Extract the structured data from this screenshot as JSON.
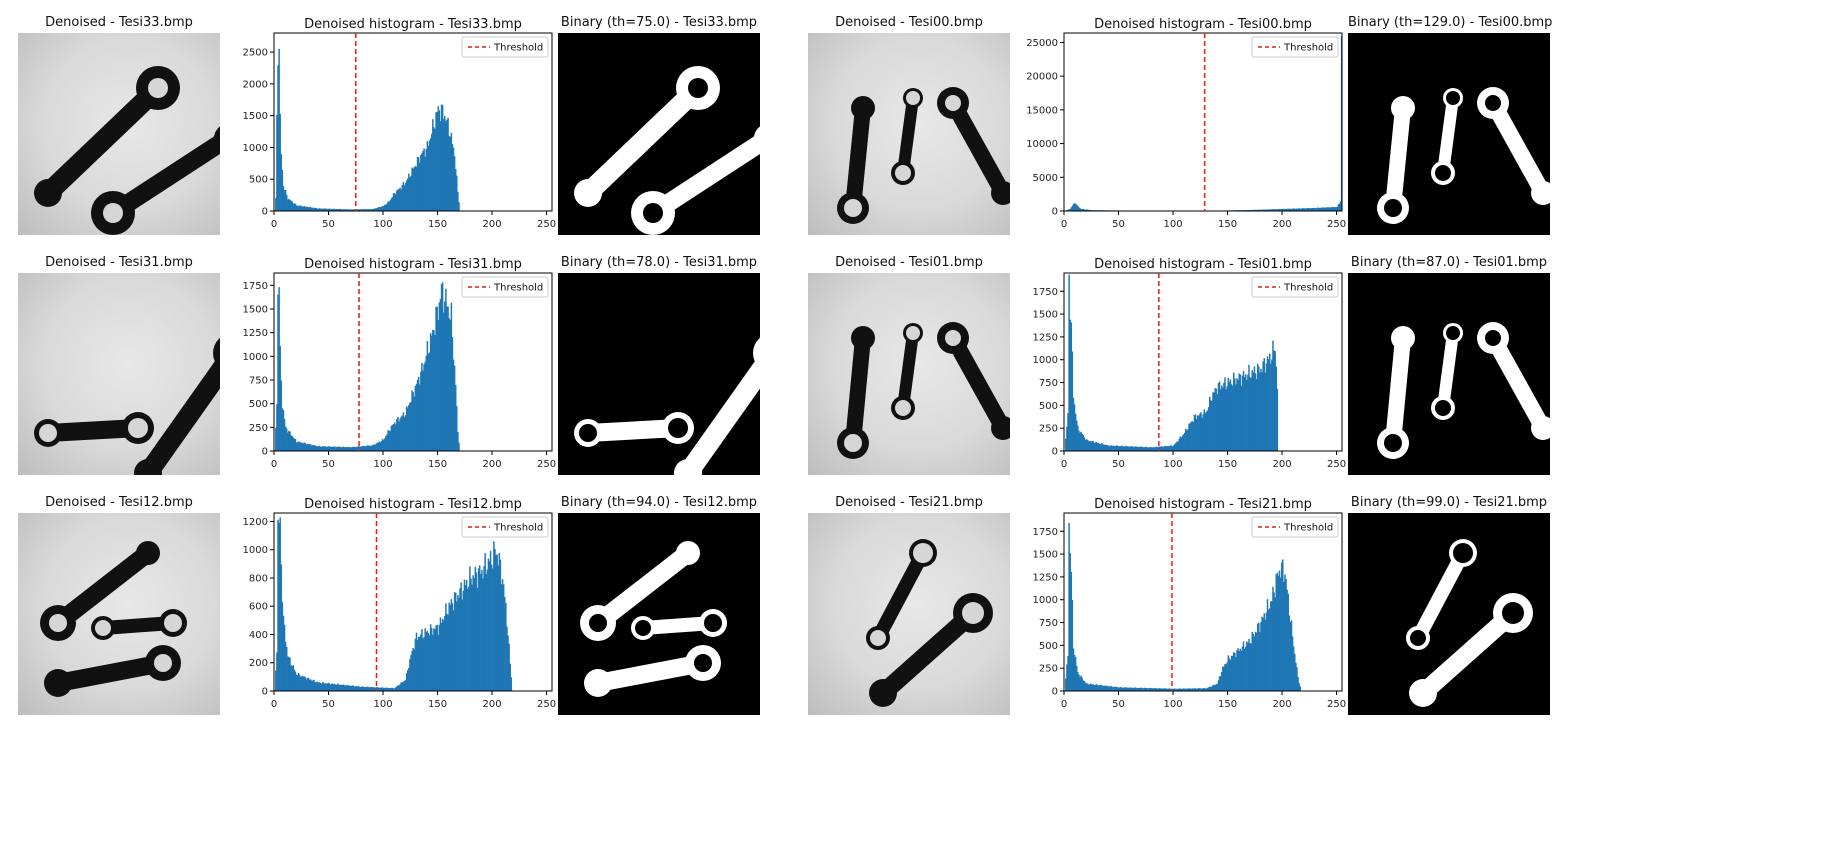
{
  "figure": {
    "groups": [
      {
        "rows": [
          {
            "denoised_title": "Denoised - Tesi33.bmp",
            "hist_title": "Denoised histogram - Tesi33.bmp",
            "binary_title": "Binary (th=75.0) - Tesi33.bmp",
            "rods": [
              {
                "x1": 30,
                "y1": 160,
                "x2": 140,
                "y2": 55,
                "r1": 14,
                "r2": 22,
                "w": 20,
                "hole2": 10
              },
              {
                "x1": 95,
                "y1": 180,
                "x2": 210,
                "y2": 105,
                "r1": 22,
                "r2": 14,
                "w": 18,
                "hole1": 10
              }
            ]
          },
          {
            "denoised_title": "Denoised - Tesi31.bmp",
            "hist_title": "Denoised histogram - Tesi31.bmp",
            "binary_title": "Binary (th=78.0) - Tesi31.bmp",
            "rods": [
              {
                "x1": 30,
                "y1": 160,
                "x2": 120,
                "y2": 155,
                "r1": 14,
                "r2": 16,
                "w": 18,
                "hole1": 9,
                "hole2": 10
              },
              {
                "x1": 130,
                "y1": 200,
                "x2": 215,
                "y2": 80,
                "r1": 14,
                "r2": 20,
                "w": 20,
                "hole2": 11
              }
            ]
          },
          {
            "denoised_title": "Denoised - Tesi12.bmp",
            "hist_title": "Denoised histogram - Tesi12.bmp",
            "binary_title": "Binary (th=94.0) - Tesi12.bmp",
            "rods": [
              {
                "x1": 40,
                "y1": 110,
                "x2": 130,
                "y2": 40,
                "r1": 18,
                "r2": 12,
                "w": 18,
                "hole1": 9
              },
              {
                "x1": 85,
                "y1": 115,
                "x2": 155,
                "y2": 110,
                "r1": 12,
                "r2": 14,
                "w": 14,
                "hole1": 8,
                "hole2": 9
              },
              {
                "x1": 40,
                "y1": 170,
                "x2": 145,
                "y2": 150,
                "r1": 14,
                "r2": 18,
                "w": 18,
                "hole2": 9
              }
            ]
          }
        ]
      },
      {
        "rows": [
          {
            "denoised_title": "Denoised - Tesi00.bmp",
            "hist_title": "Denoised histogram - Tesi00.bmp",
            "binary_title": "Binary (th=129.0) - Tesi00.bmp",
            "rods": [
              {
                "x1": 45,
                "y1": 175,
                "x2": 55,
                "y2": 75,
                "r1": 16,
                "r2": 12,
                "w": 16,
                "hole1": 9
              },
              {
                "x1": 95,
                "y1": 140,
                "x2": 105,
                "y2": 65,
                "r1": 12,
                "r2": 10,
                "w": 12,
                "hole1": 8,
                "hole2": 7
              },
              {
                "x1": 145,
                "y1": 70,
                "x2": 195,
                "y2": 160,
                "r1": 16,
                "r2": 12,
                "w": 16,
                "hole1": 8
              }
            ]
          },
          {
            "denoised_title": "Denoised - Tesi01.bmp",
            "hist_title": "Denoised histogram - Tesi01.bmp",
            "binary_title": "Binary (th=87.0) - Tesi01.bmp",
            "rods": [
              {
                "x1": 45,
                "y1": 170,
                "x2": 55,
                "y2": 65,
                "r1": 16,
                "r2": 12,
                "w": 16,
                "hole1": 9
              },
              {
                "x1": 95,
                "y1": 135,
                "x2": 105,
                "y2": 60,
                "r1": 12,
                "r2": 10,
                "w": 12,
                "hole1": 8,
                "hole2": 7
              },
              {
                "x1": 145,
                "y1": 65,
                "x2": 195,
                "y2": 155,
                "r1": 16,
                "r2": 12,
                "w": 16,
                "hole1": 8
              }
            ]
          },
          {
            "denoised_title": "Denoised - Tesi21.bmp",
            "hist_title": "Denoised histogram - Tesi21.bmp",
            "binary_title": "Binary (th=99.0) - Tesi21.bmp",
            "rods": [
              {
                "x1": 70,
                "y1": 125,
                "x2": 115,
                "y2": 40,
                "r1": 12,
                "r2": 14,
                "w": 14,
                "hole1": 8,
                "hole2": 10
              },
              {
                "x1": 75,
                "y1": 180,
                "x2": 165,
                "y2": 100,
                "r1": 14,
                "r2": 20,
                "w": 18,
                "hole2": 11
              }
            ]
          }
        ]
      }
    ]
  },
  "chart_data": [
    {
      "type": "bar",
      "title": "Denoised histogram - Tesi33.bmp",
      "legend": "Threshold",
      "legend_position": "top-right",
      "threshold": 75,
      "xlim": [
        0,
        255
      ],
      "ylim": [
        0,
        2800
      ],
      "xticks": [
        0,
        50,
        100,
        150,
        200,
        250
      ],
      "yticks": [
        0,
        500,
        1000,
        1500,
        2000,
        2500
      ],
      "profile": [
        [
          0,
          0
        ],
        [
          1,
          200
        ],
        [
          2,
          1400
        ],
        [
          3,
          2500
        ],
        [
          4,
          2700
        ],
        [
          5,
          1400
        ],
        [
          6,
          900
        ],
        [
          8,
          400
        ],
        [
          12,
          200
        ],
        [
          20,
          90
        ],
        [
          40,
          40
        ],
        [
          70,
          25
        ],
        [
          90,
          30
        ],
        [
          100,
          80
        ],
        [
          105,
          150
        ],
        [
          110,
          280
        ],
        [
          115,
          360
        ],
        [
          120,
          450
        ],
        [
          125,
          600
        ],
        [
          130,
          750
        ],
        [
          135,
          900
        ],
        [
          140,
          1000
        ],
        [
          145,
          1300
        ],
        [
          150,
          1600
        ],
        [
          155,
          1550
        ],
        [
          160,
          1300
        ],
        [
          165,
          900
        ],
        [
          168,
          300
        ],
        [
          170,
          0
        ],
        [
          255,
          0
        ]
      ]
    },
    {
      "type": "bar",
      "title": "Denoised histogram - Tesi31.bmp",
      "legend": "Threshold",
      "legend_position": "top-right",
      "threshold": 78,
      "xlim": [
        0,
        255
      ],
      "ylim": [
        0,
        1880
      ],
      "xticks": [
        0,
        50,
        100,
        150,
        200,
        250
      ],
      "yticks": [
        0,
        250,
        500,
        750,
        1000,
        1250,
        1500,
        1750
      ],
      "profile": [
        [
          0,
          0
        ],
        [
          2,
          500
        ],
        [
          3,
          1700
        ],
        [
          4,
          1800
        ],
        [
          5,
          1000
        ],
        [
          7,
          500
        ],
        [
          10,
          250
        ],
        [
          20,
          100
        ],
        [
          40,
          50
        ],
        [
          70,
          40
        ],
        [
          90,
          60
        ],
        [
          100,
          120
        ],
        [
          105,
          220
        ],
        [
          110,
          300
        ],
        [
          115,
          350
        ],
        [
          120,
          400
        ],
        [
          125,
          550
        ],
        [
          130,
          700
        ],
        [
          135,
          850
        ],
        [
          140,
          1050
        ],
        [
          145,
          1250
        ],
        [
          150,
          1500
        ],
        [
          153,
          1700
        ],
        [
          158,
          1550
        ],
        [
          162,
          1400
        ],
        [
          166,
          700
        ],
        [
          168,
          200
        ],
        [
          170,
          0
        ],
        [
          255,
          0
        ]
      ]
    },
    {
      "type": "bar",
      "title": "Denoised histogram - Tesi12.bmp",
      "legend": "Threshold",
      "legend_position": "top-right",
      "threshold": 94,
      "xlim": [
        0,
        255
      ],
      "ylim": [
        0,
        1260
      ],
      "xticks": [
        0,
        50,
        100,
        150,
        200,
        250
      ],
      "yticks": [
        0,
        200,
        400,
        600,
        800,
        1000,
        1200
      ],
      "profile": [
        [
          0,
          0
        ],
        [
          2,
          300
        ],
        [
          3,
          1150
        ],
        [
          5,
          1200
        ],
        [
          6,
          900
        ],
        [
          8,
          500
        ],
        [
          12,
          250
        ],
        [
          20,
          120
        ],
        [
          40,
          60
        ],
        [
          80,
          30
        ],
        [
          110,
          20
        ],
        [
          120,
          80
        ],
        [
          125,
          250
        ],
        [
          130,
          380
        ],
        [
          140,
          420
        ],
        [
          150,
          450
        ],
        [
          160,
          600
        ],
        [
          170,
          700
        ],
        [
          180,
          800
        ],
        [
          190,
          850
        ],
        [
          200,
          950
        ],
        [
          203,
          1000
        ],
        [
          208,
          850
        ],
        [
          212,
          600
        ],
        [
          216,
          200
        ],
        [
          218,
          0
        ],
        [
          255,
          0
        ]
      ]
    },
    {
      "type": "bar",
      "title": "Denoised histogram - Tesi00.bmp",
      "legend": "Threshold",
      "legend_position": "top-right",
      "threshold": 129,
      "xlim": [
        0,
        255
      ],
      "ylim": [
        0,
        26400
      ],
      "xticks": [
        0,
        50,
        100,
        150,
        200,
        250
      ],
      "yticks": [
        0,
        5000,
        10000,
        15000,
        20000,
        25000
      ],
      "profile": [
        [
          0,
          0
        ],
        [
          5,
          300
        ],
        [
          8,
          1000
        ],
        [
          10,
          1200
        ],
        [
          12,
          700
        ],
        [
          15,
          300
        ],
        [
          25,
          120
        ],
        [
          60,
          60
        ],
        [
          100,
          40
        ],
        [
          140,
          50
        ],
        [
          170,
          150
        ],
        [
          200,
          300
        ],
        [
          230,
          450
        ],
        [
          250,
          600
        ],
        [
          253,
          1500
        ],
        [
          254,
          24000
        ],
        [
          255,
          0
        ]
      ]
    },
    {
      "type": "bar",
      "title": "Denoised histogram - Tesi01.bmp",
      "legend": "Threshold",
      "legend_position": "top-right",
      "threshold": 87,
      "xlim": [
        0,
        255
      ],
      "ylim": [
        0,
        1950
      ],
      "xticks": [
        0,
        50,
        100,
        150,
        200,
        250
      ],
      "yticks": [
        0,
        250,
        500,
        750,
        1000,
        1250,
        1500,
        1750
      ],
      "profile": [
        [
          0,
          0
        ],
        [
          3,
          400
        ],
        [
          4,
          1850
        ],
        [
          6,
          1400
        ],
        [
          8,
          600
        ],
        [
          12,
          250
        ],
        [
          20,
          120
        ],
        [
          40,
          60
        ],
        [
          80,
          40
        ],
        [
          100,
          60
        ],
        [
          110,
          200
        ],
        [
          115,
          300
        ],
        [
          120,
          380
        ],
        [
          125,
          400
        ],
        [
          130,
          430
        ],
        [
          135,
          600
        ],
        [
          140,
          700
        ],
        [
          150,
          750
        ],
        [
          160,
          800
        ],
        [
          170,
          850
        ],
        [
          180,
          900
        ],
        [
          190,
          1050
        ],
        [
          193,
          1150
        ],
        [
          195,
          700
        ],
        [
          196,
          0
        ],
        [
          255,
          0
        ]
      ]
    },
    {
      "type": "bar",
      "title": "Denoised histogram - Tesi21.bmp",
      "legend": "Threshold",
      "legend_position": "top-right",
      "threshold": 99,
      "xlim": [
        0,
        255
      ],
      "ylim": [
        0,
        1950
      ],
      "xticks": [
        0,
        50,
        100,
        150,
        200,
        250
      ],
      "yticks": [
        0,
        250,
        500,
        750,
        1000,
        1250,
        1500,
        1750
      ],
      "profile": [
        [
          0,
          0
        ],
        [
          3,
          400
        ],
        [
          4,
          1850
        ],
        [
          6,
          1300
        ],
        [
          8,
          500
        ],
        [
          12,
          200
        ],
        [
          20,
          80
        ],
        [
          50,
          40
        ],
        [
          100,
          25
        ],
        [
          130,
          30
        ],
        [
          140,
          80
        ],
        [
          145,
          250
        ],
        [
          150,
          350
        ],
        [
          160,
          450
        ],
        [
          170,
          550
        ],
        [
          180,
          750
        ],
        [
          190,
          1000
        ],
        [
          195,
          1250
        ],
        [
          198,
          1350
        ],
        [
          202,
          1300
        ],
        [
          206,
          900
        ],
        [
          210,
          500
        ],
        [
          214,
          150
        ],
        [
          217,
          0
        ],
        [
          255,
          0
        ]
      ]
    }
  ]
}
